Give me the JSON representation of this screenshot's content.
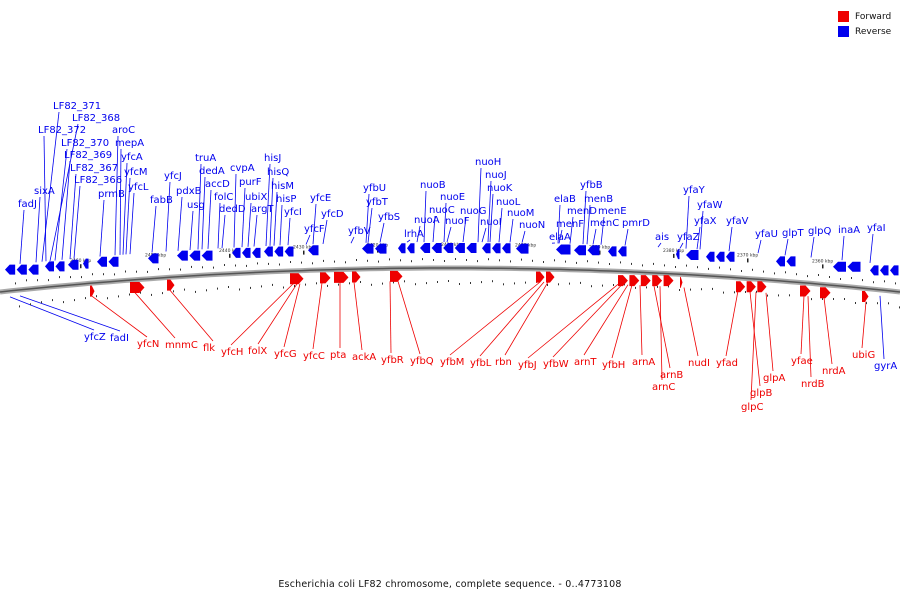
{
  "legend": [
    {
      "label": "Forward",
      "color": "#ee0000"
    },
    {
      "label": "Reverse",
      "color": "#0000ee"
    }
  ],
  "caption": "Escherichia coli LF82 chromosome, complete sequence. - 0..4773108",
  "colors": {
    "forward": "#ee0000",
    "reverse": "#0000ee",
    "backbone": "#777777"
  },
  "ticks": [
    "2460 kbp",
    "2450 kbp",
    "2440 kbp",
    "2430 kbp",
    "2420 kbp",
    "2410 kbp",
    "2400 kbp",
    "2390 kbp",
    "2380 kbp",
    "2370 kbp",
    "2360 kbp"
  ],
  "reverse_genes": [
    "LF82_371",
    "LF82_368",
    "LF82_372",
    "aroC",
    "LF82_370",
    "mepA",
    "LF82_369",
    "yfcA",
    "LF82_367",
    "yfcM",
    "LF82_366",
    "yfcL",
    "sixA",
    "prmB",
    "fadJ",
    "truA",
    "dedA",
    "cvpA",
    "hisJ",
    "yfcJ",
    "accD",
    "purF",
    "hisQ",
    "pdxB",
    "folC",
    "ubiX",
    "hisM",
    "fabB",
    "usg",
    "dedD",
    "argT",
    "hisP",
    "yfcE",
    "yfcI",
    "yfcD",
    "yfcF",
    "nuoH",
    "nuoJ",
    "yfbU",
    "nuoB",
    "nuoK",
    "yfbT",
    "nuoE",
    "nuoC",
    "nuoG",
    "nuoL",
    "yfbS",
    "nuoA",
    "nuoF",
    "nuoI",
    "nuoM",
    "yfbV",
    "lrhA",
    "nuoN",
    "yfbB",
    "elaB",
    "menB",
    "menD",
    "menE",
    "elaA",
    "menF",
    "menC",
    "pmrD",
    "yfaY",
    "yfaW",
    "yfaX",
    "yfaV",
    "ais",
    "yfaZ",
    "yfaU",
    "glpT",
    "glpQ",
    "inaA",
    "yfaI",
    "yfcZ",
    "fadI",
    "gyrA"
  ],
  "forward_genes": [
    "yfcN",
    "mnmC",
    "flk",
    "yfcH",
    "folX",
    "yfcG",
    "yfcC",
    "pta",
    "ackA",
    "yfbR",
    "yfbQ",
    "yfbM",
    "yfbL",
    "rbn",
    "yfbJ",
    "yfbW",
    "arnT",
    "yfbH",
    "arnA",
    "arnB",
    "arnC",
    "nudI",
    "yfad",
    "glpB",
    "glpC",
    "glpA",
    "yfae",
    "nrdB",
    "nrdA",
    "ubiG"
  ]
}
